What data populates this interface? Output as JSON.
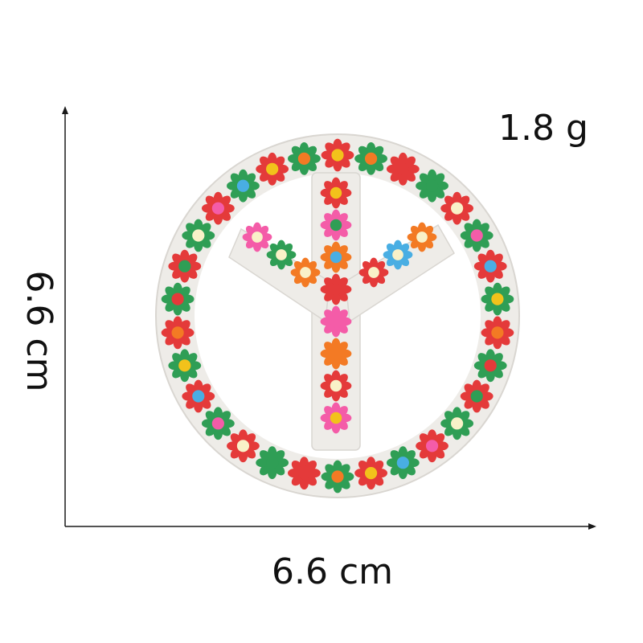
{
  "labels": {
    "weight": "1.8 g",
    "width": "6.6 cm",
    "height": "6.6 cm"
  },
  "product": {
    "description_icon": "floral-peace-sign-patch-icon",
    "felt_color": "#f1efec",
    "flower_palette": [
      "#e43a3a",
      "#f2c21b",
      "#f45ca8",
      "#2f9e55",
      "#f37a24",
      "#49aee3",
      "#f9f1c8"
    ]
  },
  "axis": {
    "color": "#1a1a1a"
  }
}
